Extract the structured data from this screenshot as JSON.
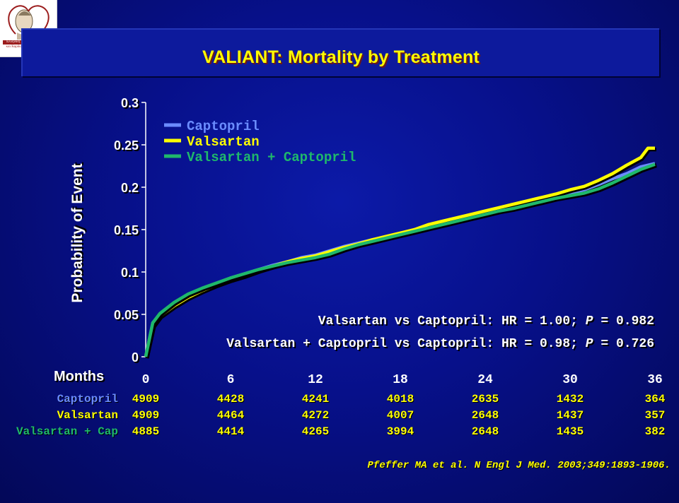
{
  "header": {
    "title": "VALIANT: Mortality by Treatment",
    "logo_line1": "Ελληνική Εταιρεία Υπέρτασης",
    "logo_line2": "και Καρδιαγγειακού Προεστίας"
  },
  "chart_data": {
    "type": "line",
    "ylabel": "Probability of Event",
    "xlabel": "Months",
    "xlim": [
      0,
      36
    ],
    "ylim": [
      0,
      0.3
    ],
    "x_ticks": [
      "0",
      "6",
      "12",
      "18",
      "24",
      "30",
      "36"
    ],
    "y_ticks": [
      "0",
      "0.05",
      "0.1",
      "0.15",
      "0.2",
      "0.25",
      "0.3"
    ],
    "legend_position": "top-left",
    "series": [
      {
        "name": "Captopril",
        "color": "#6b8cff",
        "points": [
          [
            0,
            0
          ],
          [
            0.5,
            0.04
          ],
          [
            1,
            0.05
          ],
          [
            2,
            0.063
          ],
          [
            3,
            0.072
          ],
          [
            4,
            0.08
          ],
          [
            5,
            0.086
          ],
          [
            6,
            0.093
          ],
          [
            7,
            0.098
          ],
          [
            8,
            0.103
          ],
          [
            9,
            0.108
          ],
          [
            10,
            0.112
          ],
          [
            11,
            0.117
          ],
          [
            12,
            0.12
          ],
          [
            13,
            0.125
          ],
          [
            14,
            0.13
          ],
          [
            15,
            0.134
          ],
          [
            16,
            0.138
          ],
          [
            17,
            0.141
          ],
          [
            18,
            0.145
          ],
          [
            19,
            0.149
          ],
          [
            20,
            0.154
          ],
          [
            21,
            0.158
          ],
          [
            22,
            0.162
          ],
          [
            23,
            0.166
          ],
          [
            24,
            0.17
          ],
          [
            25,
            0.174
          ],
          [
            26,
            0.178
          ],
          [
            27,
            0.182
          ],
          [
            28,
            0.186
          ],
          [
            29,
            0.19
          ],
          [
            30,
            0.193
          ],
          [
            31,
            0.197
          ],
          [
            32,
            0.203
          ],
          [
            33,
            0.21
          ],
          [
            34,
            0.216
          ],
          [
            35,
            0.224
          ],
          [
            36,
            0.228
          ]
        ]
      },
      {
        "name": "Valsartan",
        "color": "#ffff00",
        "points": [
          [
            0,
            0
          ],
          [
            0.5,
            0.037
          ],
          [
            1,
            0.048
          ],
          [
            2,
            0.06
          ],
          [
            3,
            0.07
          ],
          [
            4,
            0.078
          ],
          [
            5,
            0.085
          ],
          [
            6,
            0.091
          ],
          [
            7,
            0.096
          ],
          [
            8,
            0.102
          ],
          [
            9,
            0.107
          ],
          [
            10,
            0.112
          ],
          [
            11,
            0.116
          ],
          [
            12,
            0.119
          ],
          [
            13,
            0.124
          ],
          [
            14,
            0.129
          ],
          [
            15,
            0.133
          ],
          [
            16,
            0.138
          ],
          [
            17,
            0.142
          ],
          [
            18,
            0.146
          ],
          [
            19,
            0.15
          ],
          [
            20,
            0.156
          ],
          [
            21,
            0.16
          ],
          [
            22,
            0.164
          ],
          [
            23,
            0.168
          ],
          [
            24,
            0.172
          ],
          [
            25,
            0.176
          ],
          [
            26,
            0.18
          ],
          [
            27,
            0.184
          ],
          [
            28,
            0.188
          ],
          [
            29,
            0.192
          ],
          [
            30,
            0.197
          ],
          [
            31,
            0.201
          ],
          [
            32,
            0.208
          ],
          [
            33,
            0.216
          ],
          [
            34,
            0.226
          ],
          [
            35,
            0.235
          ],
          [
            35.5,
            0.246
          ],
          [
            36,
            0.246
          ]
        ]
      },
      {
        "name": "Valsartan + Captopril",
        "color": "#1fb86b",
        "points": [
          [
            0,
            0
          ],
          [
            0.5,
            0.04
          ],
          [
            1,
            0.051
          ],
          [
            2,
            0.064
          ],
          [
            3,
            0.074
          ],
          [
            4,
            0.081
          ],
          [
            5,
            0.087
          ],
          [
            6,
            0.093
          ],
          [
            7,
            0.098
          ],
          [
            8,
            0.103
          ],
          [
            9,
            0.107
          ],
          [
            10,
            0.111
          ],
          [
            11,
            0.114
          ],
          [
            12,
            0.117
          ],
          [
            13,
            0.121
          ],
          [
            14,
            0.127
          ],
          [
            15,
            0.132
          ],
          [
            16,
            0.136
          ],
          [
            17,
            0.14
          ],
          [
            18,
            0.144
          ],
          [
            19,
            0.148
          ],
          [
            20,
            0.152
          ],
          [
            21,
            0.156
          ],
          [
            22,
            0.16
          ],
          [
            23,
            0.164
          ],
          [
            24,
            0.168
          ],
          [
            25,
            0.172
          ],
          [
            26,
            0.175
          ],
          [
            27,
            0.179
          ],
          [
            28,
            0.183
          ],
          [
            29,
            0.187
          ],
          [
            30,
            0.19
          ],
          [
            31,
            0.193
          ],
          [
            32,
            0.198
          ],
          [
            33,
            0.205
          ],
          [
            34,
            0.213
          ],
          [
            35,
            0.221
          ],
          [
            36,
            0.227
          ]
        ]
      }
    ],
    "annotations": [
      {
        "text_before": "Valsartan vs Captopril: HR = 1.00; ",
        "italic": "P",
        "text_after": " = 0.982"
      },
      {
        "text_before": "Valsartan + Captopril vs Captopril: HR = 0.98; ",
        "italic": "P",
        "text_after": " = 0.726"
      }
    ]
  },
  "risk_table": {
    "rows": [
      {
        "label": "Captopril",
        "color": "#6b8cff",
        "values": [
          "4909",
          "4428",
          "4241",
          "4018",
          "2635",
          "1432",
          "364"
        ]
      },
      {
        "label": "Valsartan",
        "color": "#ffff00",
        "values": [
          "4909",
          "4464",
          "4272",
          "4007",
          "2648",
          "1437",
          "357"
        ]
      },
      {
        "label": "Valsartan + Cap",
        "color": "#1fb86b",
        "values": [
          "4885",
          "4414",
          "4265",
          "3994",
          "2648",
          "1435",
          "382"
        ]
      }
    ]
  },
  "citation": "Pfeffer MA et al. N Engl J Med. 2003;349:1893-1906."
}
